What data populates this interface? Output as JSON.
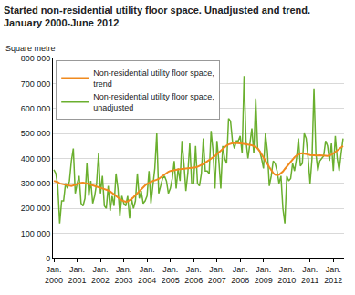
{
  "chart_data": {
    "type": "line",
    "title": "Started non-residential utility floor space. Unadjusted and trend.\nJanuary 2000-June 2012",
    "y_label": "Square metre",
    "categories": [
      "Jan. 2000",
      null,
      null,
      null,
      null,
      null,
      null,
      null,
      null,
      null,
      null,
      null,
      "Jan. 2001",
      null,
      null,
      null,
      null,
      null,
      null,
      null,
      null,
      null,
      null,
      null,
      "Jan. 2002",
      null,
      null,
      null,
      null,
      null,
      null,
      null,
      null,
      null,
      null,
      null,
      "Jan. 2003",
      null,
      null,
      null,
      null,
      null,
      null,
      null,
      null,
      null,
      null,
      null,
      "Jan. 2004",
      null,
      null,
      null,
      null,
      null,
      null,
      null,
      null,
      null,
      null,
      null,
      "Jan. 2005",
      null,
      null,
      null,
      null,
      null,
      null,
      null,
      null,
      null,
      null,
      null,
      "Jan. 2006",
      null,
      null,
      null,
      null,
      null,
      null,
      null,
      null,
      null,
      null,
      null,
      "Jan. 2007",
      null,
      null,
      null,
      null,
      null,
      null,
      null,
      null,
      null,
      null,
      null,
      "Jan. 2008",
      null,
      null,
      null,
      null,
      null,
      null,
      null,
      null,
      null,
      null,
      null,
      "Jan. 2009",
      null,
      null,
      null,
      null,
      null,
      null,
      null,
      null,
      null,
      null,
      null,
      "Jan. 2010",
      null,
      null,
      null,
      null,
      null,
      null,
      null,
      null,
      null,
      null,
      null,
      "Jan. 2011",
      null,
      null,
      null,
      null,
      null,
      null,
      null,
      null,
      null,
      null,
      null,
      "Jan. 2012",
      null,
      null,
      null,
      null,
      null
    ],
    "series": [
      {
        "name": "Non-residential utility floor space, trend",
        "color": "#f08a1e",
        "values": [
          310000,
          308000,
          305000,
          300000,
          298000,
          296000,
          294000,
          292000,
          290000,
          290000,
          292000,
          295000,
          298000,
          300000,
          302000,
          303000,
          302000,
          300000,
          298000,
          295000,
          292000,
          290000,
          287000,
          285000,
          282000,
          280000,
          278000,
          275000,
          272000,
          268000,
          262000,
          255000,
          248000,
          242000,
          236000,
          232000,
          229000,
          227000,
          228000,
          232000,
          238000,
          245000,
          253000,
          262000,
          270000,
          278000,
          285000,
          292000,
          298000,
          303000,
          307000,
          310000,
          312000,
          314000,
          318000,
          324000,
          330000,
          336000,
          342000,
          347000,
          350000,
          352000,
          354000,
          355000,
          356000,
          357000,
          358000,
          359000,
          360000,
          360000,
          360000,
          361000,
          362000,
          364000,
          367000,
          370000,
          374000,
          378000,
          383000,
          388000,
          393000,
          398000,
          404000,
          410000,
          417000,
          424000,
          432000,
          440000,
          447000,
          452000,
          456000,
          459000,
          461000,
          462000,
          462000,
          461000,
          460000,
          459000,
          458000,
          457000,
          456000,
          455000,
          453000,
          450000,
          446000,
          440000,
          430000,
          418000,
          405000,
          392000,
          378000,
          365000,
          352000,
          342000,
          335000,
          333000,
          335000,
          340000,
          348000,
          358000,
          368000,
          378000,
          388000,
          397000,
          405000,
          412000,
          417000,
          420000,
          421000,
          420000,
          418000,
          416000,
          414000,
          413000,
          412000,
          412000,
          412000,
          413000,
          413000,
          412000,
          411000,
          410000,
          412000,
          415000,
          420000,
          426000,
          432000,
          438000,
          444000,
          450000
        ]
      },
      {
        "name": "Non-residential utility floor space, unadjusted",
        "color": "#6aaf2e",
        "values": [
          355000,
          340000,
          290000,
          140000,
          230000,
          230000,
          300000,
          280000,
          310000,
          390000,
          440000,
          260000,
          300000,
          330000,
          220000,
          210000,
          240000,
          380000,
          250000,
          310000,
          220000,
          250000,
          300000,
          420000,
          260000,
          330000,
          210000,
          200000,
          290000,
          190000,
          250000,
          210000,
          340000,
          280000,
          170000,
          250000,
          220000,
          210000,
          250000,
          160000,
          240000,
          200000,
          230000,
          340000,
          240000,
          270000,
          220000,
          230000,
          250000,
          350000,
          220000,
          300000,
          360000,
          500000,
          260000,
          290000,
          320000,
          330000,
          310000,
          260000,
          280000,
          320000,
          390000,
          280000,
          360000,
          310000,
          470000,
          380000,
          270000,
          340000,
          460000,
          300000,
          300000,
          450000,
          300000,
          290000,
          340000,
          480000,
          350000,
          350000,
          340000,
          510000,
          430000,
          280000,
          470000,
          390000,
          280000,
          450000,
          400000,
          380000,
          560000,
          550000,
          470000,
          440000,
          470000,
          470000,
          490000,
          420000,
          730000,
          470000,
          400000,
          460000,
          520000,
          420000,
          640000,
          440000,
          430000,
          400000,
          360000,
          500000,
          430000,
          290000,
          330000,
          390000,
          380000,
          350000,
          300000,
          330000,
          200000,
          140000,
          330000,
          310000,
          320000,
          380000,
          350000,
          400000,
          480000,
          370000,
          380000,
          500000,
          480000,
          400000,
          300000,
          400000,
          680000,
          420000,
          350000,
          390000,
          400000,
          410000,
          470000,
          450000,
          390000,
          460000,
          350000,
          490000,
          400000,
          350000,
          420000,
          480000
        ]
      }
    ],
    "ylim": [
      0,
      800000
    ],
    "yticks": [
      0,
      {
        "value": 100000,
        "label": "100 000"
      },
      {
        "value": 200000,
        "label": "200 000"
      },
      {
        "value": 300000,
        "label": "300 000"
      },
      {
        "value": 400000,
        "label": "400 000"
      },
      {
        "value": 500000,
        "label": "500 000"
      },
      {
        "value": 600000,
        "label": "600 000"
      },
      {
        "value": 700000,
        "label": "700 000"
      },
      {
        "value": 800000,
        "label": "800 000"
      }
    ],
    "grid": true,
    "legend": "top-left"
  }
}
